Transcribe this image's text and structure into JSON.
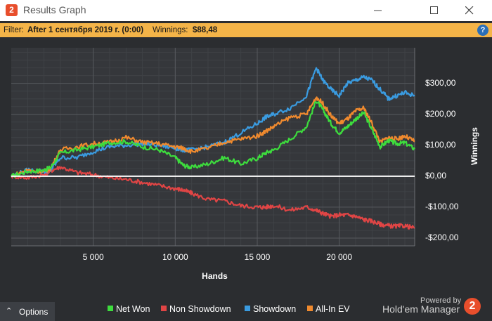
{
  "window": {
    "title": "Results Graph",
    "minimize_icon": "minimize-icon",
    "maximize_icon": "maximize-icon",
    "close_icon": "close-icon"
  },
  "filter": {
    "label": "Filter:",
    "value": "After 1 сентября 2019 г. (0:00)",
    "winnings_label": "Winnings:",
    "winnings_value": "$88,48",
    "help_icon": "help-icon"
  },
  "options": {
    "label": "Options",
    "icon": "chevron-up-icon"
  },
  "branding": {
    "powered": "Powered by",
    "product": "Hold'em Manager",
    "logo_text": "2"
  },
  "app_logo_text": "2",
  "colors": {
    "net_won": "#3ddc3d",
    "non_showdown": "#e04545",
    "showdown": "#3a9be0",
    "all_in_ev": "#f08a2e",
    "filter_bar": "#f4b448",
    "background": "#2b2d30"
  },
  "chart_data": {
    "type": "line",
    "xlabel": "Hands",
    "ylabel": "Winnings",
    "xlim": [
      0,
      24600
    ],
    "ylim": [
      -225,
      415
    ],
    "x_ticks": [
      5000,
      10000,
      15000,
      20000
    ],
    "x_tick_labels": [
      "5 000",
      "10 000",
      "15 000",
      "20 000"
    ],
    "y_ticks": [
      300,
      200,
      100,
      0,
      -100,
      -200
    ],
    "y_tick_labels": [
      "$300,00",
      "$200,00",
      "$100,00",
      "$0,00",
      "-$100,00",
      "-$200,00"
    ],
    "grid": true,
    "legend_position": "bottom",
    "x": [
      0,
      1000,
      2000,
      2400,
      3000,
      4000,
      5000,
      6000,
      7000,
      8000,
      9000,
      10000,
      10500,
      11000,
      12000,
      13000,
      14000,
      15000,
      15500,
      16000,
      17000,
      18000,
      18600,
      19000,
      19500,
      20000,
      20500,
      21000,
      21500,
      22000,
      22500,
      23000,
      23500,
      24000,
      24600
    ],
    "series": [
      {
        "name": "Net Won",
        "color": "#3ddc3d",
        "values": [
          0,
          15,
          20,
          28,
          75,
          85,
          95,
          108,
          112,
          95,
          85,
          60,
          35,
          28,
          40,
          60,
          40,
          58,
          75,
          85,
          120,
          160,
          245,
          215,
          170,
          140,
          160,
          185,
          205,
          150,
          95,
          115,
          105,
          108,
          88
        ]
      },
      {
        "name": "Non Showdown",
        "color": "#e04545",
        "values": [
          0,
          -5,
          5,
          18,
          30,
          12,
          5,
          -5,
          -10,
          -20,
          -30,
          -40,
          -45,
          -55,
          -75,
          -80,
          -95,
          -100,
          -100,
          -95,
          -110,
          -100,
          -110,
          -120,
          -130,
          -125,
          -125,
          -130,
          -140,
          -145,
          -155,
          -160,
          -162,
          -160,
          -168
        ]
      },
      {
        "name": "Showdown",
        "color": "#3a9be0",
        "values": [
          0,
          20,
          15,
          20,
          60,
          60,
          80,
          95,
          100,
          105,
          100,
          90,
          85,
          85,
          95,
          110,
          140,
          170,
          190,
          200,
          220,
          260,
          350,
          310,
          280,
          260,
          300,
          310,
          320,
          310,
          280,
          250,
          260,
          270,
          260
        ]
      },
      {
        "name": "All-In EV",
        "color": "#f08a2e",
        "values": [
          0,
          20,
          15,
          25,
          85,
          95,
          105,
          110,
          125,
          110,
          105,
          95,
          90,
          80,
          90,
          110,
          120,
          130,
          145,
          160,
          190,
          200,
          255,
          235,
          195,
          170,
          185,
          210,
          220,
          170,
          110,
          125,
          120,
          130,
          112
        ]
      }
    ]
  }
}
